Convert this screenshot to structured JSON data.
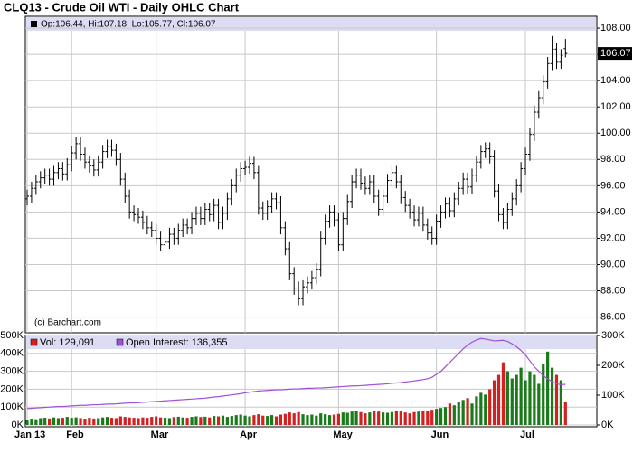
{
  "chart_data": [
    {
      "type": "ohlc",
      "title": "CLQ13 - Crude Oil WTI - Daily OHLC Chart",
      "annotation": "(c) Barchart.com",
      "legend_text": "Op:106.44, Hi:107.18, Lo:105.77, Cl:106.07",
      "last_value_label": "106.07",
      "color": "#000000",
      "grid": true,
      "categories": [
        "Jan 13",
        null,
        null,
        null,
        null,
        null,
        null,
        null,
        null,
        null,
        "Feb",
        null,
        null,
        null,
        null,
        null,
        null,
        null,
        null,
        null,
        null,
        null,
        null,
        null,
        null,
        null,
        null,
        null,
        null,
        "Mar",
        null,
        null,
        null,
        null,
        null,
        null,
        null,
        null,
        null,
        null,
        null,
        null,
        null,
        null,
        null,
        null,
        null,
        null,
        null,
        "Apr",
        null,
        null,
        null,
        null,
        null,
        null,
        null,
        null,
        null,
        null,
        null,
        null,
        null,
        null,
        null,
        null,
        null,
        null,
        null,
        null,
        "May",
        null,
        null,
        null,
        null,
        null,
        null,
        null,
        null,
        null,
        null,
        null,
        null,
        null,
        null,
        null,
        null,
        null,
        null,
        null,
        null,
        null,
        "Jun",
        null,
        null,
        null,
        null,
        null,
        null,
        null,
        null,
        null,
        null,
        null,
        null,
        null,
        null,
        null,
        null,
        null,
        null,
        null,
        "Jul",
        null,
        null,
        null,
        null,
        null,
        null,
        null,
        null,
        null
      ],
      "open": [
        95.0,
        95.2,
        95.8,
        96.3,
        96.6,
        96.8,
        96.5,
        97.0,
        97.3,
        96.9,
        97.6,
        98.5,
        99.2,
        98.4,
        97.8,
        97.5,
        97.2,
        97.8,
        98.6,
        99.0,
        98.7,
        98.0,
        96.5,
        95.2,
        94.0,
        93.8,
        93.6,
        93.2,
        92.8,
        92.6,
        92.0,
        91.5,
        91.7,
        92.3,
        92.0,
        92.6,
        93.0,
        92.8,
        93.5,
        93.9,
        93.5,
        94.2,
        93.8,
        94.5,
        93.2,
        93.9,
        95.0,
        96.0,
        96.8,
        97.3,
        97.4,
        97.7,
        97.0,
        94.3,
        93.9,
        94.4,
        95.0,
        94.7,
        92.8,
        91.2,
        89.3,
        88.2,
        87.4,
        88.3,
        88.6,
        89.0,
        89.6,
        92.0,
        93.3,
        94.0,
        93.4,
        91.5,
        93.5,
        94.8,
        96.3,
        96.8,
        96.2,
        95.8,
        96.3,
        95.2,
        94.2,
        95.2,
        96.4,
        97.0,
        96.3,
        95.1,
        94.5,
        94.0,
        93.4,
        93.9,
        93.0,
        92.4,
        92.0,
        93.3,
        94.0,
        94.6,
        94.1,
        95.0,
        95.8,
        96.5,
        95.9,
        96.8,
        97.8,
        98.6,
        98.8,
        98.2,
        95.6,
        93.8,
        93.2,
        94.2,
        95.0,
        96.0,
        97.3,
        98.4,
        99.9,
        101.6,
        102.7,
        103.9,
        105.3,
        106.4,
        105.4,
        106.44
      ],
      "high": [
        95.7,
        96.3,
        96.8,
        97.1,
        97.3,
        97.3,
        97.5,
        97.8,
        97.8,
        98.1,
        99.0,
        99.7,
        99.7,
        98.9,
        98.3,
        98.0,
        98.3,
        99.1,
        99.5,
        99.5,
        99.2,
        98.5,
        97.0,
        95.7,
        94.5,
        94.3,
        94.1,
        93.7,
        93.3,
        93.1,
        92.5,
        92.2,
        92.8,
        92.8,
        93.1,
        93.5,
        93.5,
        94.0,
        94.4,
        94.4,
        94.7,
        94.7,
        95.0,
        95.0,
        94.4,
        95.5,
        96.5,
        97.3,
        97.8,
        97.9,
        98.2,
        98.2,
        97.5,
        94.8,
        94.9,
        95.5,
        95.5,
        95.2,
        93.3,
        91.7,
        89.8,
        88.7,
        88.8,
        89.1,
        89.5,
        90.1,
        92.5,
        93.8,
        94.5,
        94.5,
        93.9,
        94.0,
        95.3,
        96.8,
        97.3,
        97.3,
        96.7,
        96.8,
        96.8,
        95.7,
        95.7,
        96.9,
        97.5,
        97.5,
        96.8,
        95.6,
        95.0,
        94.5,
        94.4,
        94.4,
        93.5,
        92.9,
        93.8,
        94.5,
        95.1,
        95.1,
        95.5,
        96.3,
        97.0,
        97.0,
        97.3,
        98.3,
        99.1,
        99.3,
        99.3,
        98.7,
        96.1,
        94.3,
        94.7,
        95.5,
        96.5,
        97.8,
        98.9,
        100.4,
        102.1,
        103.2,
        104.4,
        105.8,
        107.4,
        106.9,
        106.4,
        107.18
      ],
      "low": [
        94.5,
        94.7,
        95.3,
        95.8,
        96.1,
        96.0,
        96.0,
        96.5,
        96.4,
        96.4,
        97.1,
        98.0,
        97.9,
        97.3,
        97.0,
        96.7,
        96.7,
        97.3,
        98.1,
        98.2,
        97.5,
        96.0,
        94.7,
        93.5,
        93.3,
        93.1,
        92.7,
        92.3,
        92.1,
        91.5,
        91.0,
        91.0,
        91.2,
        91.5,
        91.5,
        92.1,
        92.3,
        92.3,
        93.0,
        93.0,
        93.0,
        93.3,
        93.3,
        92.7,
        92.7,
        93.4,
        94.5,
        95.5,
        96.3,
        96.8,
        96.9,
        96.5,
        93.8,
        93.4,
        93.4,
        93.9,
        94.2,
        92.3,
        90.7,
        88.8,
        87.7,
        86.9,
        86.9,
        87.8,
        88.1,
        88.5,
        89.1,
        91.5,
        92.8,
        92.9,
        91.0,
        91.0,
        93.0,
        94.3,
        95.8,
        95.7,
        95.3,
        95.3,
        94.7,
        93.7,
        93.7,
        94.7,
        95.9,
        95.8,
        94.6,
        94.0,
        93.5,
        92.9,
        92.9,
        92.5,
        91.9,
        91.5,
        91.5,
        92.8,
        93.5,
        93.6,
        93.6,
        94.5,
        95.3,
        95.4,
        95.4,
        96.3,
        97.3,
        98.1,
        97.7,
        95.1,
        93.3,
        92.7,
        92.7,
        93.7,
        94.5,
        95.5,
        96.8,
        97.9,
        99.4,
        101.1,
        102.2,
        103.4,
        104.8,
        104.9,
        104.9,
        105.77
      ],
      "close": [
        95.2,
        95.8,
        96.3,
        96.6,
        96.8,
        96.5,
        97.0,
        97.3,
        96.9,
        97.6,
        98.5,
        99.2,
        98.4,
        97.8,
        97.5,
        97.2,
        97.8,
        98.6,
        99.0,
        98.7,
        98.0,
        96.5,
        95.2,
        94.0,
        93.8,
        93.6,
        93.2,
        92.8,
        92.6,
        92.0,
        91.5,
        91.7,
        92.3,
        92.0,
        92.6,
        93.0,
        92.8,
        93.5,
        93.9,
        93.5,
        94.2,
        93.8,
        94.5,
        93.2,
        93.9,
        95.0,
        96.0,
        96.8,
        97.3,
        97.4,
        97.7,
        97.0,
        94.3,
        93.9,
        94.4,
        95.0,
        94.7,
        92.8,
        91.2,
        89.3,
        88.2,
        87.4,
        88.3,
        88.6,
        89.0,
        89.6,
        92.0,
        93.3,
        94.0,
        93.4,
        91.5,
        93.5,
        94.8,
        96.3,
        96.8,
        96.2,
        95.8,
        96.3,
        95.2,
        94.2,
        95.2,
        96.4,
        97.0,
        96.3,
        95.1,
        94.5,
        94.0,
        93.4,
        93.9,
        93.0,
        92.4,
        92.0,
        93.3,
        94.0,
        94.6,
        94.1,
        95.0,
        95.8,
        96.5,
        95.9,
        96.8,
        97.8,
        98.6,
        98.8,
        98.2,
        95.6,
        93.8,
        93.2,
        94.2,
        95.0,
        96.0,
        97.3,
        98.4,
        99.9,
        101.6,
        102.7,
        103.9,
        105.3,
        106.4,
        105.4,
        105.9,
        106.07
      ],
      "ylim": [
        84.8,
        108.9
      ],
      "yticks": [
        {
          "value": 86,
          "label": "86.00"
        },
        {
          "value": 88,
          "label": "88.00"
        },
        {
          "value": 90,
          "label": "90.00"
        },
        {
          "value": 92,
          "label": "92.00"
        },
        {
          "value": 94,
          "label": "94.00"
        },
        {
          "value": 96,
          "label": "96.00"
        },
        {
          "value": 98,
          "label": "98.00"
        },
        {
          "value": 100,
          "label": "100.00"
        },
        {
          "value": 102,
          "label": "102.00"
        },
        {
          "value": 104,
          "label": "104.00"
        },
        {
          "value": 106,
          "label": "106.00"
        },
        {
          "value": 108,
          "label": "108.00"
        }
      ]
    },
    {
      "type": "volume",
      "grid": true,
      "ylim": [
        0,
        500000
      ],
      "yticks": [
        {
          "value": 0,
          "label": "0K"
        },
        {
          "value": 100000,
          "label": "100K"
        },
        {
          "value": 200000,
          "label": "200K"
        },
        {
          "value": 300000,
          "label": "300K"
        },
        {
          "value": 400000,
          "label": "400K"
        },
        {
          "value": 500000,
          "label": "500K"
        }
      ],
      "y2lim": [
        0,
        300000
      ],
      "y2ticks": [
        {
          "value": 0,
          "label": "0K"
        },
        {
          "value": 100000,
          "label": "100K"
        },
        {
          "value": 200000,
          "label": "200K"
        },
        {
          "value": 300000,
          "label": "300K"
        }
      ],
      "series": [
        {
          "name": "Vol: 129,091",
          "color": "#d42020",
          "up_color": "#1a7a1a",
          "down_color": "#d42020",
          "values": [
            30000,
            35000,
            32000,
            38000,
            40000,
            36000,
            42000,
            38000,
            40000,
            45000,
            40000,
            42000,
            38000,
            35000,
            40000,
            36000,
            38000,
            42000,
            45000,
            40000,
            38000,
            48000,
            45000,
            42000,
            40000,
            38000,
            42000,
            40000,
            45000,
            48000,
            42000,
            40000,
            38000,
            44000,
            46000,
            42000,
            40000,
            45000,
            48000,
            44000,
            46000,
            42000,
            50000,
            48000,
            52000,
            45000,
            50000,
            55000,
            58000,
            52000,
            48000,
            55000,
            60000,
            52000,
            50000,
            55000,
            48000,
            58000,
            62000,
            70000,
            65000,
            72000,
            60000,
            55000,
            58000,
            52000,
            65000,
            60000,
            55000,
            58000,
            62000,
            70000,
            68000,
            75000,
            80000,
            72000,
            65000,
            70000,
            78000,
            75000,
            70000,
            68000,
            72000,
            80000,
            78000,
            70000,
            65000,
            72000,
            75000,
            80000,
            78000,
            85000,
            90000,
            95000,
            100000,
            120000,
            110000,
            130000,
            140000,
            150000,
            120000,
            160000,
            180000,
            170000,
            200000,
            250000,
            280000,
            350000,
            300000,
            260000,
            280000,
            320000,
            250000,
            300000,
            280000,
            230000,
            340000,
            410000,
            320000,
            280000,
            250000,
            129091
          ]
        },
        {
          "name": "Open Interest: 136,355",
          "color": "#a050d8",
          "axis": "y2",
          "values": [
            55000,
            56000,
            57000,
            58000,
            59000,
            60000,
            61000,
            62000,
            62000,
            63000,
            64000,
            65000,
            66000,
            66000,
            67000,
            68000,
            68000,
            69000,
            70000,
            70000,
            71000,
            72000,
            73000,
            74000,
            74000,
            75000,
            76000,
            77000,
            78000,
            79000,
            80000,
            81000,
            82000,
            83000,
            84000,
            85000,
            86000,
            87000,
            88000,
            89000,
            90000,
            92000,
            94000,
            95000,
            97000,
            99000,
            101000,
            103000,
            105000,
            108000,
            110000,
            112000,
            114000,
            115000,
            116000,
            117000,
            118000,
            118000,
            119000,
            120000,
            121000,
            121000,
            122000,
            123000,
            123000,
            124000,
            124000,
            125000,
            126000,
            127000,
            128000,
            129000,
            130000,
            131000,
            131000,
            132000,
            133000,
            134000,
            135000,
            136000,
            137000,
            138000,
            140000,
            141000,
            142000,
            144000,
            146000,
            148000,
            150000,
            152000,
            155000,
            160000,
            170000,
            180000,
            195000,
            210000,
            225000,
            240000,
            255000,
            268000,
            278000,
            285000,
            290000,
            288000,
            285000,
            282000,
            283000,
            284000,
            280000,
            272000,
            262000,
            250000,
            235000,
            215000,
            195000,
            180000,
            165000,
            155000,
            145000,
            138000,
            135000,
            136355
          ]
        }
      ]
    }
  ]
}
